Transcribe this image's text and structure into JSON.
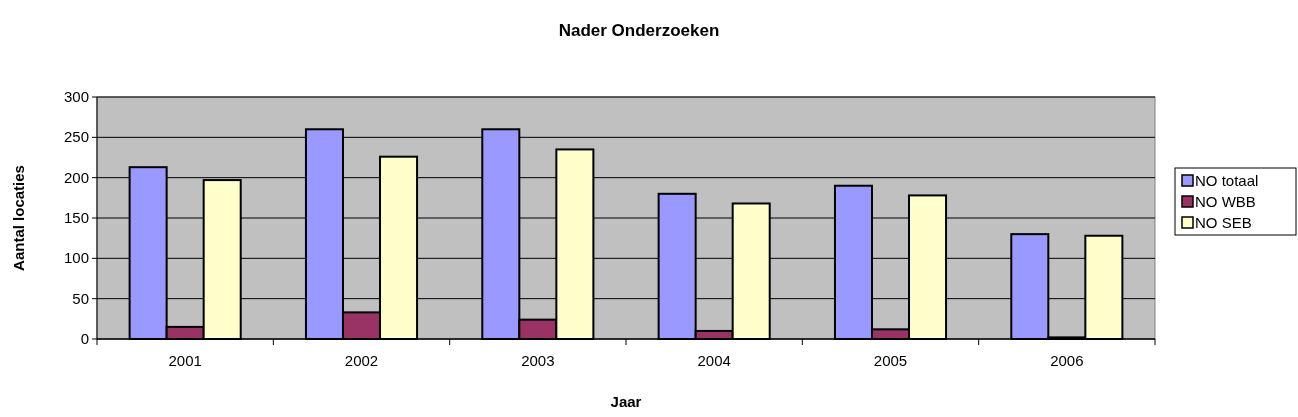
{
  "chart_data": {
    "type": "bar",
    "title": "Nader Onderzoeken",
    "xlabel": "Jaar",
    "ylabel": "Aantal locaties",
    "categories": [
      "2001",
      "2002",
      "2003",
      "2004",
      "2005",
      "2006"
    ],
    "series": [
      {
        "name": "NO totaal",
        "color": "#9999ff",
        "values": [
          213,
          260,
          260,
          180,
          190,
          130
        ]
      },
      {
        "name": "NO WBB",
        "color": "#993366",
        "values": [
          15,
          33,
          24,
          10,
          12,
          2
        ]
      },
      {
        "name": "NO SEB",
        "color": "#ffffcc",
        "values": [
          197,
          226,
          235,
          168,
          178,
          128
        ]
      }
    ],
    "ylim": [
      0,
      300
    ],
    "yticks": [
      0,
      50,
      100,
      150,
      200,
      250,
      300
    ],
    "grid": "y",
    "legend": "right"
  }
}
